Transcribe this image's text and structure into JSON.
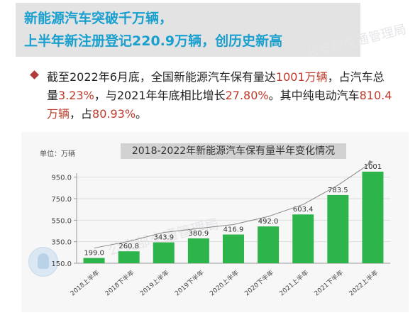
{
  "banner": {
    "line1": "新能源汽车突破千万辆，",
    "line2": "上半年新注册登记220.9万辆，创历史新高"
  },
  "watermark": "公安部交通管理局",
  "paragraph": {
    "p1": "截至2022年6月底，全国新能源汽车保有量达",
    "v1": "1001万辆",
    "p2": "，占汽车总量",
    "v2": "3.23%",
    "p3": "，与2021年年底相比增长",
    "v3": "27.80%",
    "p4": "。其中纯电动汽车",
    "v4": "810.4万辆",
    "p5": "，占",
    "v5": "80.93%",
    "p6": "。"
  },
  "colors": {
    "bar": "#2db54b",
    "trend": "#888888",
    "highlight": "#c0392b",
    "banner_text": "#1aa0cf"
  },
  "chart_data": {
    "type": "bar",
    "title": "2018-2022年新能源汽车保有量半年变化情况",
    "unit": "单位：万辆",
    "categories": [
      "2018上半年",
      "2018下半年",
      "2019上半年",
      "2019下半年",
      "2020上半年",
      "2020下半年",
      "2021上半年",
      "2021下半年",
      "2022上半年"
    ],
    "values": [
      199.0,
      260.8,
      343.9,
      380.9,
      416.9,
      492.0,
      603.4,
      783.5,
      1001
    ],
    "value_labels": [
      "199.0",
      "260.8",
      "343.9",
      "380.9",
      "416.9",
      "492.0",
      "603.4",
      "783.5",
      "1001"
    ],
    "y_ticks": [
      "150.0",
      "350.0",
      "550.0",
      "750.0",
      "950.0"
    ],
    "y_tick_values": [
      150,
      350,
      550,
      750,
      950
    ],
    "ylim": [
      150,
      1040
    ],
    "grid": true,
    "trendline": true
  }
}
